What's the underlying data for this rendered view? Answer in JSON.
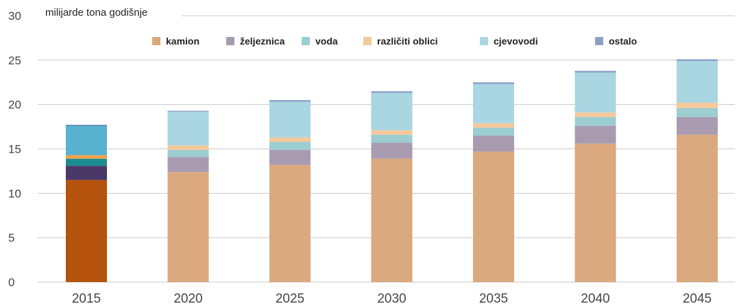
{
  "chart_data": {
    "type": "bar",
    "stacked": true,
    "unit_label": "milijarde tona godišnje",
    "categories": [
      "2015",
      "2020",
      "2025",
      "2030",
      "2035",
      "2040",
      "2045"
    ],
    "y_ticks": [
      "0",
      "5",
      "10",
      "15",
      "20",
      "25",
      "30"
    ],
    "ylim": [
      0,
      30
    ],
    "grid": true,
    "legend_position": "top",
    "series": [
      {
        "name": "kamion",
        "color": "#dba97f",
        "values": [
          11.5,
          12.4,
          13.2,
          13.9,
          14.7,
          15.6,
          16.6
        ]
      },
      {
        "name": "željeznica",
        "color": "#a89bb0",
        "values": [
          1.6,
          1.7,
          1.7,
          1.8,
          1.8,
          2.0,
          2.0
        ]
      },
      {
        "name": "voda",
        "color": "#9ccdd0",
        "values": [
          0.8,
          0.8,
          0.9,
          0.9,
          0.9,
          1.0,
          1.0
        ]
      },
      {
        "name": "različiti oblici",
        "color": "#f6c89c",
        "values": [
          0.4,
          0.5,
          0.5,
          0.5,
          0.5,
          0.5,
          0.6
        ]
      },
      {
        "name": "cjevovodi",
        "color": "#aad6e2",
        "values": [
          3.3,
          3.8,
          4.0,
          4.2,
          4.4,
          4.5,
          4.7
        ]
      },
      {
        "name": "ostalo",
        "color": "#8ea0c8",
        "values": [
          0.1,
          0.1,
          0.2,
          0.2,
          0.2,
          0.2,
          0.2
        ]
      }
    ],
    "highlight": {
      "category": "2015",
      "colors": [
        "#b5520d",
        "#4a3868",
        "#1c8d92",
        "#f0a350",
        "#59b2cf",
        "#3c64a6"
      ]
    }
  }
}
